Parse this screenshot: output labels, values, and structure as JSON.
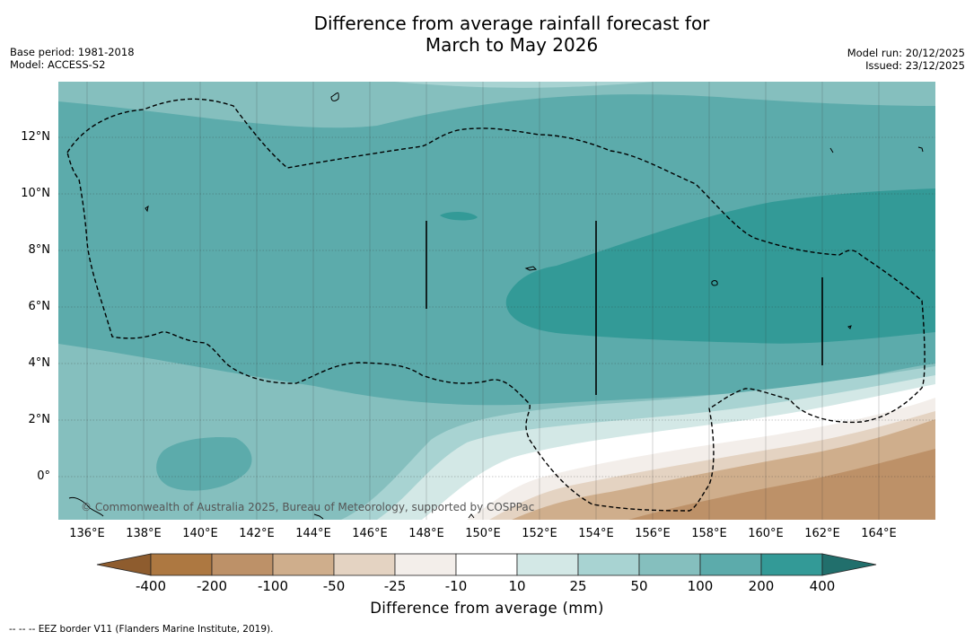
{
  "title_line1": "Difference from average rainfall forecast for",
  "title_line2": "March to May 2026",
  "meta_left": {
    "base_period": "Base period: 1981-2018",
    "model": "Model: ACCESS-S2"
  },
  "meta_right": {
    "model_run": "Model run: 20/12/2025",
    "issued": "Issued: 23/12/2025"
  },
  "map": {
    "lat_labels": [
      "12°N",
      "10°N",
      "8°N",
      "6°N",
      "4°N",
      "2°N",
      "0°"
    ],
    "lon_labels": [
      "136°E",
      "138°E",
      "140°E",
      "142°E",
      "144°E",
      "146°E",
      "148°E",
      "150°E",
      "152°E",
      "154°E",
      "156°E",
      "158°E",
      "160°E",
      "162°E",
      "164°E"
    ],
    "copyright": "© Commonwealth of Australia 2025, Bureau of Meteorology, supported by COSPPac"
  },
  "colorbar": {
    "ticks": [
      "-400",
      "-200",
      "-100",
      "-50",
      "-25",
      "-10",
      "10",
      "25",
      "50",
      "100",
      "200",
      "400"
    ],
    "colors": {
      "below_min": "#8e5c2e",
      "c1": "#ad7841",
      "c2": "#bd9168",
      "c3": "#cfae8c",
      "c4": "#e4d3c2",
      "c5": "#f3eeea",
      "c6": "#ffffff",
      "c7": "#d3e8e6",
      "c8": "#a8d3d2",
      "c9": "#85bfbe",
      "c10": "#5cabab",
      "c11": "#339a97",
      "above_max": "#216f6c"
    },
    "label": "Difference from average (mm)"
  },
  "footer": "--  --  -- EEZ border V11 (Flanders Marine Institute, 2019)."
}
